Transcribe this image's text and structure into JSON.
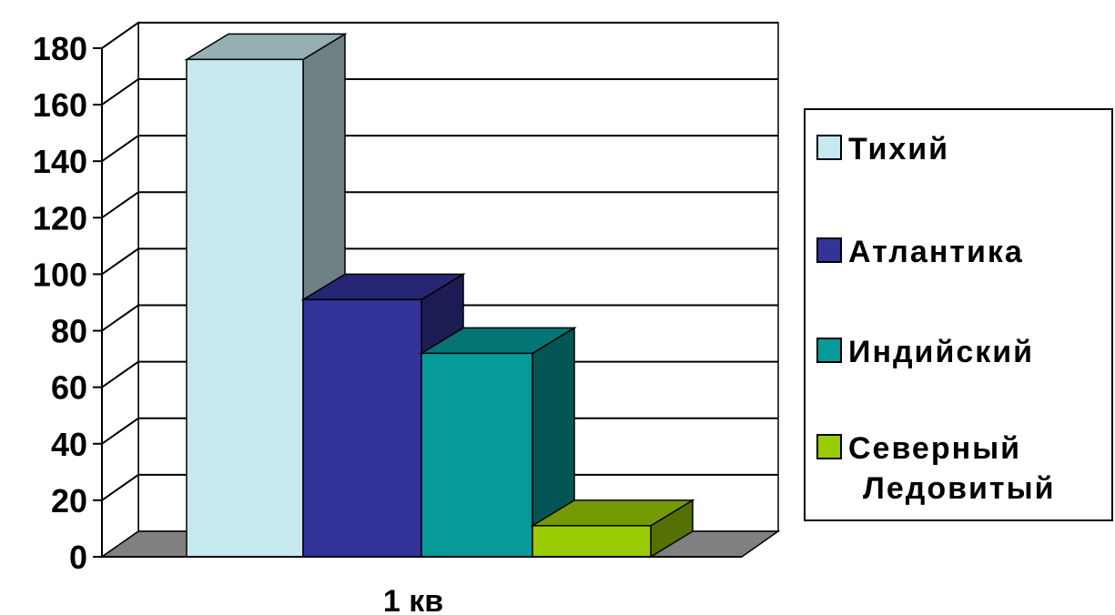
{
  "chart_data": {
    "type": "bar",
    "style": "3d-column",
    "categories": [
      "1 кв"
    ],
    "series": [
      {
        "name": "Тихий",
        "values": [
          176
        ],
        "color": "#c6e9ef"
      },
      {
        "name": "Атлантика",
        "values": [
          91
        ],
        "color": "#33339a"
      },
      {
        "name": "Индийский",
        "values": [
          72
        ],
        "color": "#079a9a"
      },
      {
        "name": "Северный Ледовитый",
        "values": [
          11
        ],
        "color": "#9acc06"
      }
    ],
    "yticks": [
      "0",
      "20",
      "40",
      "60",
      "80",
      "100",
      "120",
      "140",
      "160",
      "180"
    ],
    "ylim": [
      0,
      180
    ],
    "grid": true,
    "legend_position": "right",
    "title": "",
    "xlabel": "",
    "ylabel": ""
  },
  "colors": {
    "floor": "#808080",
    "walls": "#ffffff",
    "grid": "#000000"
  }
}
